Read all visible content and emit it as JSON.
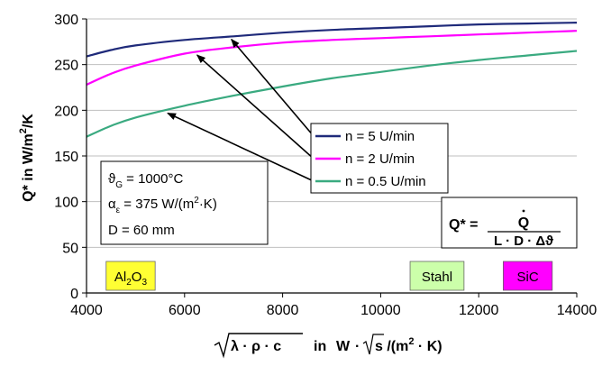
{
  "chart_data": {
    "type": "line",
    "xlabel": {
      "prefix": "in",
      "unit_main": "W",
      "unit_rest": "s /(m",
      "unit_sup": "2",
      "unit_end": " · K)",
      "sqrt_body": "λ · ρ · c"
    },
    "ylabel": {
      "main": "Q* in W/m",
      "sup": "2",
      "tail": "/K"
    },
    "xlim": [
      4000,
      14000
    ],
    "ylim": [
      0,
      300
    ],
    "xticks": [
      "4000",
      "6000",
      "8000",
      "10000",
      "12000",
      "14000"
    ],
    "yticks": [
      "0",
      "50",
      "100",
      "150",
      "200",
      "250",
      "300"
    ],
    "grid": "horizontal",
    "legend_position": "center-right",
    "series": [
      {
        "name": "n = 5 U/min",
        "color": "#1f2a7a",
        "x": [
          4000,
          4500,
          5000,
          6000,
          7000,
          8000,
          9000,
          10000,
          11000,
          12000,
          13000,
          14000
        ],
        "y": [
          259,
          266,
          271,
          277,
          281,
          285,
          288,
          290,
          292,
          294,
          295,
          296
        ]
      },
      {
        "name": "n = 2 U/min",
        "color": "#ff00ff",
        "x": [
          4000,
          4500,
          5000,
          6000,
          7000,
          8000,
          9000,
          10000,
          11000,
          12000,
          13000,
          14000
        ],
        "y": [
          228,
          240,
          249,
          262,
          269,
          274,
          277,
          279,
          281,
          283,
          285,
          287
        ]
      },
      {
        "name": "n = 0.5 U/min",
        "color": "#3aaa80",
        "x": [
          4000,
          4500,
          5000,
          6000,
          7000,
          8000,
          9000,
          10000,
          11000,
          12000,
          13000,
          14000
        ],
        "y": [
          171,
          183,
          192,
          205,
          216,
          226,
          235,
          242,
          249,
          255,
          260,
          265
        ]
      }
    ],
    "params_box": {
      "line1": {
        "symbol": "ϑ",
        "sub": "G",
        "text": " = 1000°C"
      },
      "line2": {
        "symbol": "α",
        "sub": "ε",
        "text": " = 375 W/(m",
        "sup": "2",
        "end": "·K)"
      },
      "line3": {
        "text": "D = 60 mm"
      }
    },
    "formula_box": {
      "lhs": "Q* =",
      "numerator": "Q",
      "denominator": "L · D · Δϑ"
    },
    "material_labels": [
      {
        "id": "al2o3",
        "text": "Al",
        "sub1": "2",
        "mid": "O",
        "sub2": "3",
        "color": "#ffff33",
        "x_from": 4400,
        "x_to": 5400
      },
      {
        "id": "stahl",
        "text": "Stahl",
        "color": "#ccffaa",
        "x_from": 10600,
        "x_to": 11700
      },
      {
        "id": "sic",
        "text": "SiC",
        "color": "#ff00ff",
        "x_from": 12500,
        "x_to": 13500
      }
    ]
  }
}
